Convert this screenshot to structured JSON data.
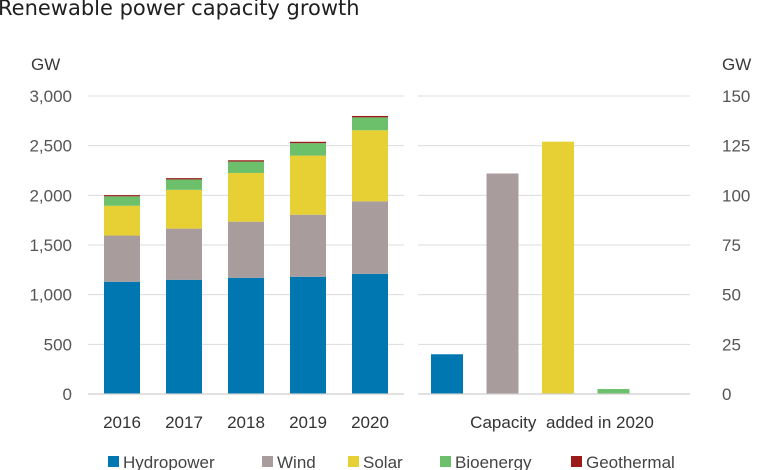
{
  "chart_data": {
    "type": "bar",
    "title": "Renewable power capacity growth",
    "colors": {
      "Hydropower": "#0077b0",
      "Wind": "#a89c9c",
      "Solar": "#e6d033",
      "Bioenergy": "#6cc06c",
      "Geothermal": "#9b1b1b"
    },
    "legend": [
      "Hydropower",
      "Wind",
      "Solar",
      "Bioenergy",
      "Geothermal"
    ],
    "left_panel": {
      "type": "stacked-bar",
      "unit": "GW",
      "ylim": [
        0,
        3000
      ],
      "yticks": [
        "0",
        "500",
        "1,000",
        "1,500",
        "2,000",
        "2,500",
        "3,000"
      ],
      "categories": [
        "2016",
        "2017",
        "2018",
        "2019",
        "2020"
      ],
      "series": [
        {
          "name": "Hydropower",
          "values": [
            1130,
            1150,
            1170,
            1180,
            1210
          ]
        },
        {
          "name": "Wind",
          "values": [
            465,
            515,
            565,
            625,
            730
          ]
        },
        {
          "name": "Solar",
          "values": [
            300,
            390,
            490,
            595,
            715
          ]
        },
        {
          "name": "Bioenergy",
          "values": [
            95,
            105,
            115,
            125,
            130
          ]
        },
        {
          "name": "Geothermal",
          "values": [
            12,
            13,
            13,
            14,
            14
          ]
        }
      ]
    },
    "right_panel": {
      "type": "bar",
      "unit": "GW",
      "ylim": [
        0,
        150
      ],
      "yticks": [
        "0",
        "25",
        "50",
        "75",
        "100",
        "125",
        "150"
      ],
      "xlabel_prefix": "Capacity",
      "xlabel_suffix": "added in 2020",
      "categories": [
        "Hydropower",
        "Wind",
        "Solar",
        "Bioenergy",
        "Geothermal"
      ],
      "values": [
        20,
        111,
        127,
        2.5,
        0.2
      ]
    }
  }
}
